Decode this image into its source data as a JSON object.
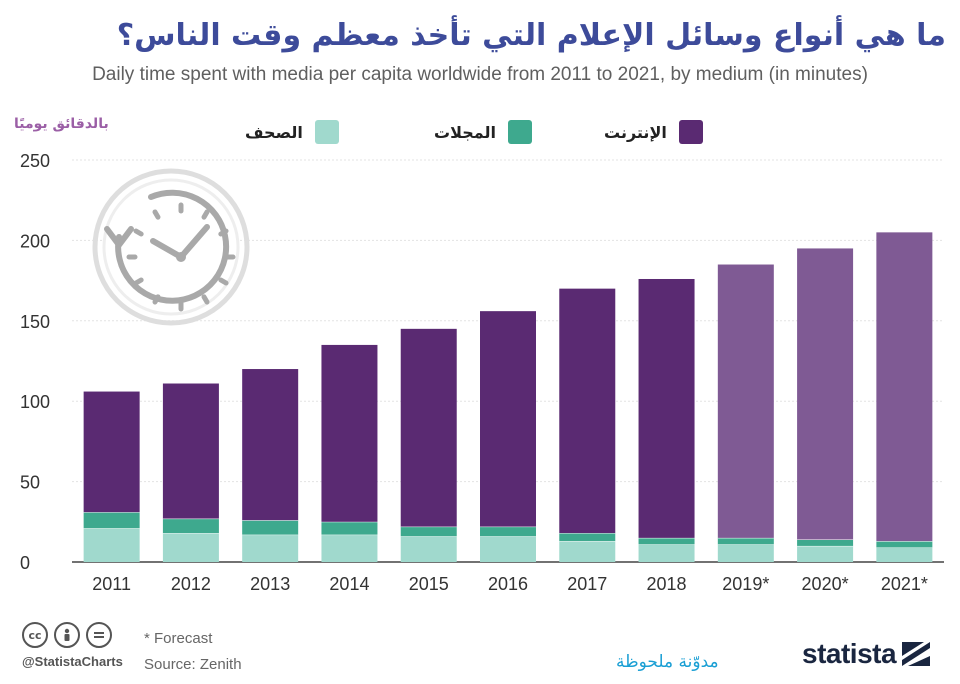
{
  "title": "ما هي أنواع وسائل الإعلام التي تأخذ معظم وقت الناس؟",
  "subtitle": "Daily time spent with media per capita worldwide from 2011 to 2021, by medium (in minutes)",
  "unit_label": "بالدقائق يوميًا",
  "legend": [
    {
      "label": "الإنترنت",
      "color": "#5a2a72"
    },
    {
      "label": "المجلات",
      "color": "#3ea98e"
    },
    {
      "label": "الصحف",
      "color": "#a0d9cd"
    }
  ],
  "footer": {
    "cc_icons": [
      "cc-icon",
      "person-icon",
      "equals-icon"
    ],
    "handle": "@StatistaCharts",
    "forecast_note": "* Forecast",
    "source": "Source: Zenith",
    "watermark": "مدوّنة ملحوظة",
    "brand": "statista"
  },
  "icons": [
    "clock-icon"
  ],
  "chart_data": {
    "type": "bar",
    "stacked": true,
    "categories": [
      "2011",
      "2012",
      "2013",
      "2014",
      "2015",
      "2016",
      "2017",
      "2018",
      "2019*",
      "2020*",
      "2021*"
    ],
    "forecast": [
      false,
      false,
      false,
      false,
      false,
      false,
      false,
      false,
      true,
      true,
      true
    ],
    "series": [
      {
        "name": "الصحف",
        "color": "#a0d9cd",
        "values": [
          21,
          18,
          17,
          17,
          16,
          16,
          13,
          11,
          11,
          10,
          9
        ]
      },
      {
        "name": "المجلات",
        "color": "#3ea98e",
        "values": [
          10,
          9,
          9,
          8,
          6,
          6,
          5,
          4,
          4,
          4,
          4
        ]
      },
      {
        "name": "الإنترنت",
        "color": "#5a2a72",
        "forecast_color": "#7f5a94",
        "values": [
          75,
          84,
          94,
          110,
          123,
          134,
          152,
          161,
          170,
          181,
          192
        ]
      }
    ],
    "ylim": [
      0,
      250
    ],
    "yticks": [
      0,
      50,
      100,
      150,
      200,
      250
    ],
    "grid": true,
    "legend_position": "top"
  }
}
